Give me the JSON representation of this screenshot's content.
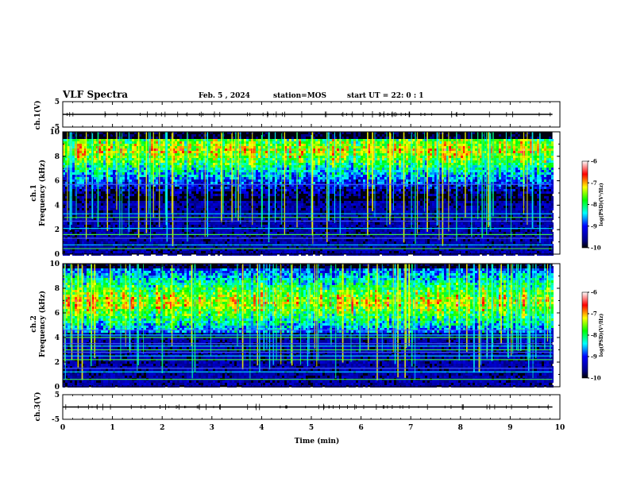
{
  "header": {
    "title": "VLF Spectra",
    "date": "Feb. 5 , 2024",
    "station": "station=MOS",
    "start": "start UT = 22: 0 : 1"
  },
  "chart_data": [
    {
      "type": "line",
      "panel": "ch1-waveform",
      "ylabel": "ch.1(V)",
      "ylim": [
        -5,
        5
      ],
      "yticks": [
        "5",
        "-5"
      ],
      "xlim": [
        0,
        10
      ],
      "trace_level": 0
    },
    {
      "type": "heatmap",
      "panel": "ch1-spectrogram",
      "ylabel": "ch.1 Frequency (kHz)",
      "ylim": [
        0,
        10
      ],
      "yticks": [
        "0",
        "2",
        "4",
        "6",
        "8",
        "10"
      ],
      "xlim": [
        0,
        10
      ],
      "data_end_min": 9.85,
      "colorbar": {
        "label": "log(PSD)(V²/Hz)",
        "range": [
          -10,
          -6
        ],
        "ticks": [
          "-6",
          "-7",
          "-8",
          "-9",
          "-10"
        ]
      },
      "lines_khz": [
        0.45,
        0.75,
        1.3,
        1.6,
        2.1,
        2.7,
        3.0,
        3.3,
        5.7
      ],
      "noise_band_khz": [
        4.5,
        9.5
      ],
      "noise_peak_khz": 8.6
    },
    {
      "type": "heatmap",
      "panel": "ch2-spectrogram",
      "ylabel": "ch.2 Frequency (kHz)",
      "ylim": [
        0,
        10
      ],
      "yticks": [
        "0",
        "2",
        "4",
        "6",
        "8",
        "10"
      ],
      "xlim": [
        0,
        10
      ],
      "data_end_min": 9.85,
      "colorbar": {
        "label": "log(PSD)(V²/Hz)",
        "range": [
          -10,
          -6
        ],
        "ticks": [
          "-6",
          "-7",
          "-8",
          "-9",
          "-10"
        ]
      },
      "lines_khz": [
        0.6,
        1.2,
        1.5,
        2.2,
        2.5,
        2.8,
        3.0,
        3.3,
        3.5,
        4.0,
        4.2,
        4.6
      ],
      "noise_band_khz": [
        4.5,
        9.8
      ],
      "noise_peak_khz": 7.0
    },
    {
      "type": "line",
      "panel": "ch3-waveform",
      "ylabel": "ch.3(V)",
      "ylim": [
        -5,
        5
      ],
      "yticks": [
        "5",
        "-5"
      ],
      "xlim": [
        0,
        10
      ],
      "trace_level": 0
    }
  ],
  "xaxis": {
    "label": "Time (min)",
    "ticks": [
      "0",
      "1",
      "2",
      "3",
      "4",
      "5",
      "6",
      "7",
      "8",
      "9",
      "10"
    ]
  },
  "colors": {
    "background_dark": "#000010",
    "axis": "#000000"
  }
}
